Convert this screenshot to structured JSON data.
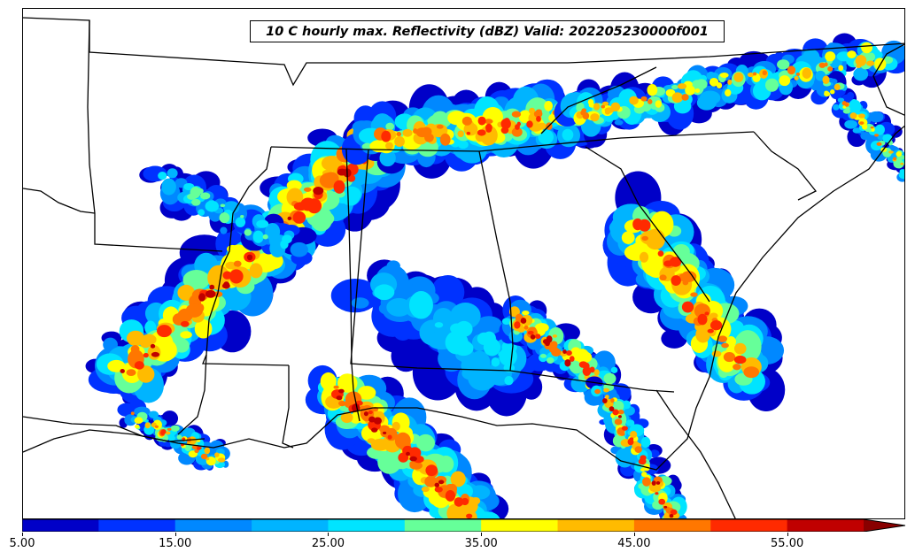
{
  "title": "10 C hourly max. Reflectivity (dBZ) Valid: 202205230000f001",
  "colorbar": {
    "min": 5.0,
    "max": 60.0,
    "extend": "max",
    "levels": [
      5,
      10,
      15,
      20,
      25,
      30,
      35,
      40,
      45,
      50,
      55
    ],
    "colors": [
      "#0000c8",
      "#0032ff",
      "#0088ff",
      "#00b4ff",
      "#00e4ff",
      "#66ff99",
      "#ffff00",
      "#ffbb00",
      "#ff7700",
      "#ff2a00",
      "#c00000"
    ],
    "tick_labels": [
      "5.00",
      "15.00",
      "25.00",
      "35.00",
      "45.00",
      "55.00"
    ],
    "tick_values": [
      5,
      15,
      25,
      35,
      45,
      55
    ]
  },
  "map": {
    "region": "Southeastern United States",
    "border_color": "#000000",
    "background": "#ffffff"
  }
}
